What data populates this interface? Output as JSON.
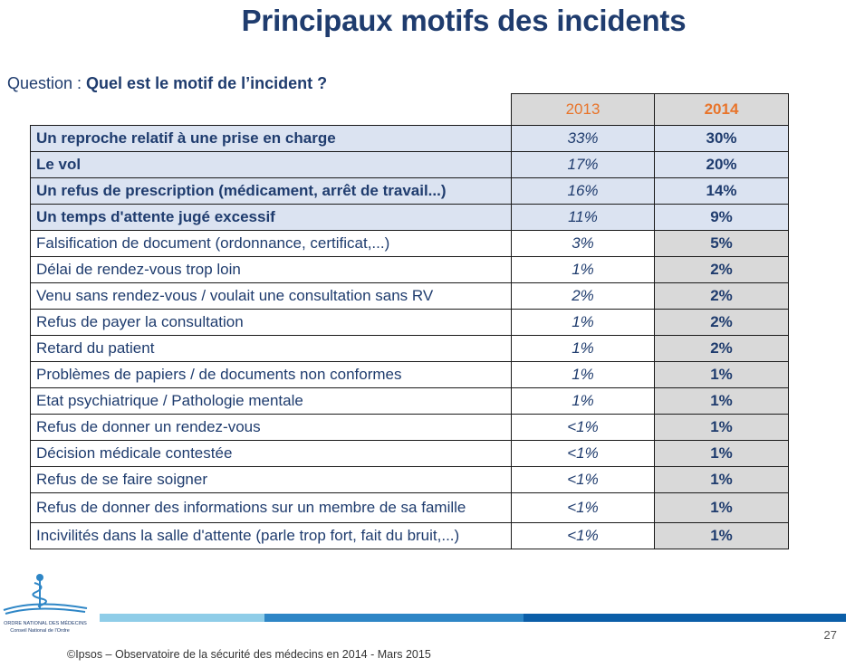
{
  "title": "Principaux motifs des incidents",
  "question": {
    "prefix": "Question : ",
    "text": "Quel est le motif de l’incident ?"
  },
  "table": {
    "columns": [
      "2013",
      "2014"
    ],
    "rows": [
      {
        "label": "Un reproche relatif à une prise en charge",
        "v2013": "33%",
        "v2014": "30%"
      },
      {
        "label": "Le vol",
        "v2013": "17%",
        "v2014": "20%"
      },
      {
        "label": "Un refus de prescription (médicament, arrêt de travail...)",
        "v2013": "16%",
        "v2014": "14%"
      },
      {
        "label": "Un temps d'attente jugé excessif",
        "v2013": "11%",
        "v2014": "9%"
      },
      {
        "label": "Falsification de document (ordonnance, certificat,...)",
        "v2013": "3%",
        "v2014": "5%"
      },
      {
        "label": "Délai de rendez-vous trop loin",
        "v2013": "1%",
        "v2014": "2%"
      },
      {
        "label": "Venu sans rendez-vous / voulait une consultation sans RV",
        "v2013": "2%",
        "v2014": "2%"
      },
      {
        "label": "Refus de payer la consultation",
        "v2013": "1%",
        "v2014": "2%"
      },
      {
        "label": "Retard du patient",
        "v2013": "1%",
        "v2014": "2%"
      },
      {
        "label": "Problèmes de papiers / de documents non conformes",
        "v2013": "1%",
        "v2014": "1%"
      },
      {
        "label": "Etat psychiatrique / Pathologie mentale",
        "v2013": "1%",
        "v2014": "1%"
      },
      {
        "label": "Refus de donner un rendez-vous",
        "v2013": "<1%",
        "v2014": "1%"
      },
      {
        "label": "Décision médicale contestée",
        "v2013": "<1%",
        "v2014": "1%"
      },
      {
        "label": "Refus de se faire soigner",
        "v2013": "<1%",
        "v2014": "1%"
      },
      {
        "label": "Refus de donner des informations sur un membre de sa famille",
        "v2013": "<1%",
        "v2014": "1%"
      },
      {
        "label": "Incivilités dans la salle d'attente (parle trop fort, fait du bruit,...)",
        "v2013": "<1%",
        "v2014": "1%"
      }
    ]
  },
  "logo": {
    "icon": "caduceus-icon",
    "text_line1": "ORDRE NATIONAL DES MÉDECINS",
    "text_line2": "Conseil National de l'Ordre"
  },
  "page_number": "27",
  "footer": "©Ipsos – Observatoire de la sécurité des médecins en 2014 - Mars 2015",
  "colors": {
    "title": "#1f3c6e",
    "highlight_row": "#dbe3f1",
    "header_year": "#e8742a",
    "column_2014_bg": "#d9d9d9"
  }
}
